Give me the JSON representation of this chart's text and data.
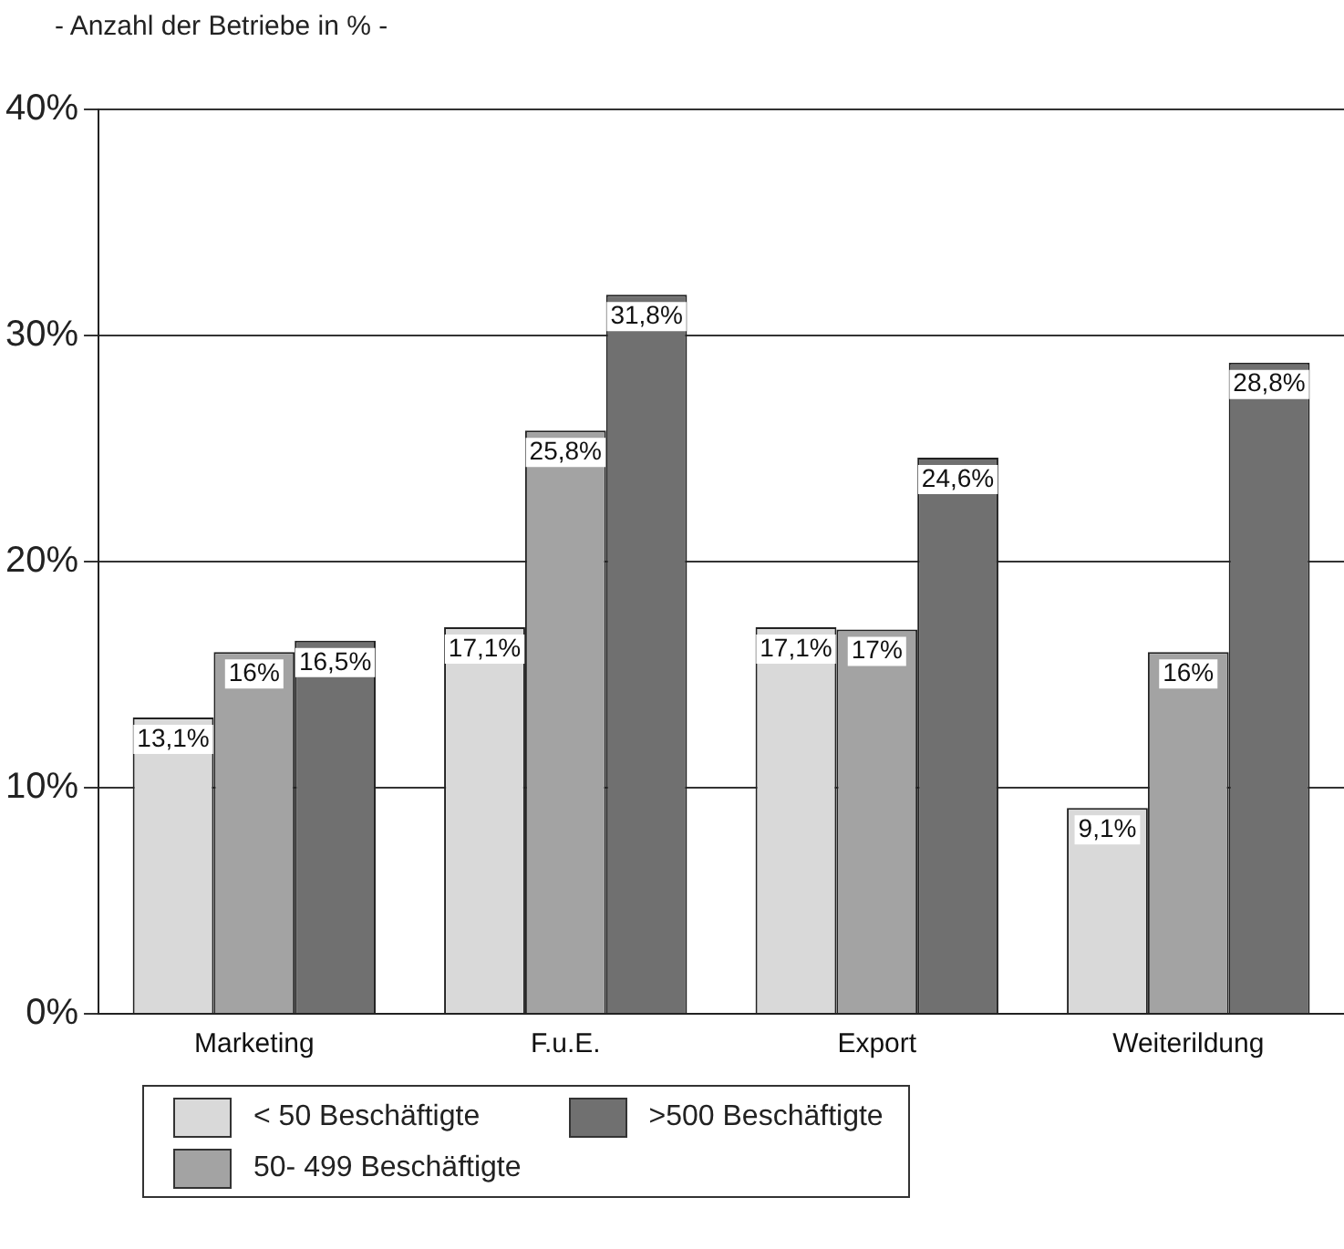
{
  "chart_data": {
    "type": "bar",
    "ylabel": "- Anzahl der Betriebe in % -",
    "categories": [
      "Marketing",
      "F.u.E.",
      "Export",
      "Weiterildung"
    ],
    "series": [
      {
        "name": "< 50 Beschäftigte",
        "color": "#d9d9d9",
        "values": [
          13.1,
          17.1,
          17.1,
          9.1
        ],
        "value_labels": [
          "13,1%",
          "17,1%",
          "17,1%",
          "9,1%"
        ]
      },
      {
        "name": "50- 499 Beschäftigte",
        "color": "#a3a3a3",
        "values": [
          16,
          25.8,
          17,
          16
        ],
        "value_labels": [
          "16%",
          "25,8%",
          "17%",
          "16%"
        ]
      },
      {
        "name": ">500 Beschäftigte",
        "color": "#707070",
        "values": [
          16.5,
          31.8,
          24.6,
          28.8
        ],
        "value_labels": [
          "16,5%",
          "31,8%",
          "24,6%",
          "28,8%"
        ]
      }
    ],
    "ylim": [
      0,
      40
    ],
    "yticks": [
      {
        "value": 0,
        "label": "0%"
      },
      {
        "value": 10,
        "label": "10%"
      },
      {
        "value": 20,
        "label": "20%"
      },
      {
        "value": 30,
        "label": "30%"
      },
      {
        "value": 40,
        "label": "40%"
      }
    ],
    "grid": "y",
    "legend": "bottom left"
  }
}
